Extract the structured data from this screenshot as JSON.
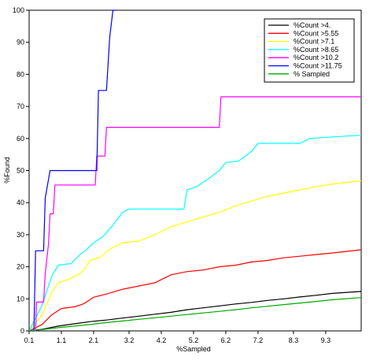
{
  "chart_data": {
    "type": "line",
    "title": "",
    "xlabel": "%Sampled",
    "ylabel": "%Found",
    "xlim": [
      0.1,
      10.4
    ],
    "ylim": [
      0,
      100
    ],
    "x_ticks": [
      {
        "value": 0.1,
        "label": "0.1"
      },
      {
        "value": 1.1,
        "label": "1.1"
      },
      {
        "value": 2.1,
        "label": "2.1"
      },
      {
        "value": 3.2,
        "label": "3.2"
      },
      {
        "value": 4.2,
        "label": "4.2"
      },
      {
        "value": 5.2,
        "label": "5.2"
      },
      {
        "value": 6.2,
        "label": "6.2"
      },
      {
        "value": 7.2,
        "label": "7.2"
      },
      {
        "value": 8.3,
        "label": "8.3"
      },
      {
        "value": 9.3,
        "label": "9.3"
      }
    ],
    "y_ticks": [
      0,
      10,
      20,
      30,
      40,
      50,
      60,
      70,
      80,
      90,
      100
    ],
    "grid": false,
    "legend_position": "top-right",
    "series": [
      {
        "name": "%Count >4.",
        "color": "#000000",
        "points": [
          [
            0.1,
            0
          ],
          [
            0.5,
            0.5
          ],
          [
            1.0,
            1.5
          ],
          [
            1.5,
            2.2
          ],
          [
            2.0,
            2.9
          ],
          [
            2.5,
            3.4
          ],
          [
            3.0,
            4.0
          ],
          [
            3.5,
            4.6
          ],
          [
            4.0,
            5.2
          ],
          [
            4.5,
            5.8
          ],
          [
            5.0,
            6.6
          ],
          [
            5.5,
            7.2
          ],
          [
            6.0,
            7.8
          ],
          [
            6.5,
            8.4
          ],
          [
            7.0,
            8.9
          ],
          [
            7.5,
            9.5
          ],
          [
            8.0,
            10.0
          ],
          [
            8.5,
            10.6
          ],
          [
            9.0,
            11.1
          ],
          [
            9.5,
            11.7
          ],
          [
            10.4,
            12.3
          ]
        ]
      },
      {
        "name": "%Count >5.55",
        "color": "#ff0000",
        "points": [
          [
            0.1,
            0
          ],
          [
            0.5,
            2.0
          ],
          [
            0.8,
            5.0
          ],
          [
            1.1,
            7.0
          ],
          [
            1.5,
            7.5
          ],
          [
            1.8,
            8.5
          ],
          [
            2.1,
            10.5
          ],
          [
            2.5,
            11.5
          ],
          [
            3.0,
            13.0
          ],
          [
            3.5,
            14.0
          ],
          [
            4.0,
            15.0
          ],
          [
            4.5,
            17.5
          ],
          [
            5.0,
            18.5
          ],
          [
            5.5,
            19.0
          ],
          [
            6.0,
            20.0
          ],
          [
            6.5,
            20.5
          ],
          [
            7.0,
            21.5
          ],
          [
            7.5,
            22.0
          ],
          [
            8.0,
            22.8
          ],
          [
            8.5,
            23.3
          ],
          [
            9.0,
            23.8
          ],
          [
            9.5,
            24.3
          ],
          [
            10.4,
            25.3
          ]
        ]
      },
      {
        "name": "%Count >7.1",
        "color": "#ffff00",
        "points": [
          [
            0.1,
            0
          ],
          [
            0.5,
            5.0
          ],
          [
            0.8,
            12.0
          ],
          [
            1.0,
            15.0
          ],
          [
            1.3,
            16.0
          ],
          [
            1.6,
            17.5
          ],
          [
            1.8,
            19.0
          ],
          [
            2.0,
            22.0
          ],
          [
            2.3,
            23.0
          ],
          [
            2.6,
            25.5
          ],
          [
            3.0,
            27.5
          ],
          [
            3.5,
            28.0
          ],
          [
            4.0,
            30.0
          ],
          [
            4.5,
            32.5
          ],
          [
            5.0,
            34.0
          ],
          [
            5.5,
            35.5
          ],
          [
            6.0,
            37.0
          ],
          [
            6.5,
            39.0
          ],
          [
            7.0,
            40.5
          ],
          [
            7.5,
            42.0
          ],
          [
            8.0,
            43.0
          ],
          [
            8.5,
            44.0
          ],
          [
            9.0,
            45.0
          ],
          [
            9.5,
            45.8
          ],
          [
            10.4,
            46.8
          ]
        ]
      },
      {
        "name": "%Count >8.65",
        "color": "#00ffff",
        "points": [
          [
            0.1,
            0
          ],
          [
            0.5,
            8.0
          ],
          [
            0.8,
            17.0
          ],
          [
            1.0,
            20.5
          ],
          [
            1.4,
            21.0
          ],
          [
            1.7,
            24.0
          ],
          [
            1.9,
            25.5
          ],
          [
            2.1,
            27.5
          ],
          [
            2.4,
            29.5
          ],
          [
            2.7,
            33.0
          ],
          [
            3.0,
            37.0
          ],
          [
            3.2,
            38.0
          ],
          [
            4.9,
            38.0
          ],
          [
            5.0,
            44.0
          ],
          [
            5.3,
            45.0
          ],
          [
            5.6,
            47.0
          ],
          [
            6.0,
            50.0
          ],
          [
            6.2,
            52.5
          ],
          [
            6.6,
            53.0
          ],
          [
            7.0,
            56.0
          ],
          [
            7.2,
            58.5
          ],
          [
            8.5,
            58.5
          ],
          [
            8.8,
            60.0
          ],
          [
            9.5,
            60.5
          ],
          [
            10.4,
            61.0
          ]
        ]
      },
      {
        "name": "%Count >10.2",
        "color": "#ff00ff",
        "points": [
          [
            0.1,
            0
          ],
          [
            0.3,
            0
          ],
          [
            0.33,
            9.0
          ],
          [
            0.55,
            9.0
          ],
          [
            0.6,
            18.0
          ],
          [
            0.7,
            27.0
          ],
          [
            0.75,
            36.5
          ],
          [
            0.85,
            36.5
          ],
          [
            0.9,
            45.5
          ],
          [
            2.15,
            45.5
          ],
          [
            2.2,
            54.5
          ],
          [
            2.45,
            54.5
          ],
          [
            2.5,
            63.5
          ],
          [
            6.0,
            63.5
          ],
          [
            6.05,
            73.0
          ],
          [
            10.4,
            73.0
          ]
        ]
      },
      {
        "name": "%Count >11.75",
        "color": "#0000ff",
        "points": [
          [
            0.1,
            0
          ],
          [
            0.25,
            0
          ],
          [
            0.3,
            25.0
          ],
          [
            0.55,
            25.0
          ],
          [
            0.6,
            41.5
          ],
          [
            0.75,
            50.0
          ],
          [
            2.2,
            50.0
          ],
          [
            2.25,
            75.0
          ],
          [
            2.5,
            75.0
          ],
          [
            2.55,
            83.5
          ],
          [
            2.6,
            91.5
          ],
          [
            2.7,
            100.0
          ],
          [
            2.8,
            100.0
          ]
        ]
      },
      {
        "name": "% Sampled",
        "color": "#00aa00",
        "points": [
          [
            0.1,
            0
          ],
          [
            0.5,
            0.4
          ],
          [
            1.0,
            1.0
          ],
          [
            1.5,
            1.5
          ],
          [
            2.0,
            2.0
          ],
          [
            2.5,
            2.6
          ],
          [
            3.0,
            3.1
          ],
          [
            3.5,
            3.6
          ],
          [
            4.0,
            4.1
          ],
          [
            4.5,
            4.6
          ],
          [
            5.0,
            5.1
          ],
          [
            5.5,
            5.6
          ],
          [
            6.0,
            6.1
          ],
          [
            6.5,
            6.6
          ],
          [
            7.0,
            7.2
          ],
          [
            7.5,
            7.7
          ],
          [
            8.0,
            8.2
          ],
          [
            8.5,
            8.7
          ],
          [
            9.0,
            9.2
          ],
          [
            9.5,
            9.7
          ],
          [
            10.4,
            10.4
          ]
        ]
      }
    ]
  }
}
